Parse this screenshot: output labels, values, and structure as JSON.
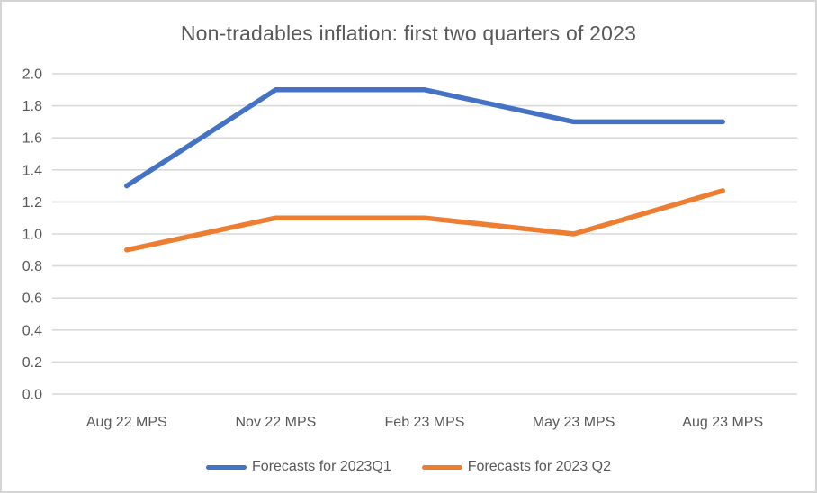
{
  "window": {
    "background": "#ffffff",
    "border_color": "#d5d5d5"
  },
  "colors": {
    "series1": "#4472c4",
    "series2": "#ed7d31",
    "gridline": "#d9d9d9",
    "text": "#595959"
  },
  "legend": {
    "items": [
      {
        "label": "Forecasts for 2023Q1",
        "color": "#4472c4"
      },
      {
        "label": "Forecasts for 2023 Q2",
        "color": "#ed7d31"
      }
    ]
  },
  "chart_data": {
    "type": "line",
    "title": "Non-tradables inflation: first two quarters of 2023",
    "categories": [
      "Aug 22 MPS",
      "Nov 22 MPS",
      "Feb 23 MPS",
      "May 23 MPS",
      "Aug 23 MPS"
    ],
    "series": [
      {
        "name": "Forecasts for 2023Q1",
        "color": "#4472c4",
        "values": [
          1.3,
          1.9,
          1.9,
          1.7,
          1.7
        ]
      },
      {
        "name": "Forecasts for 2023 Q2",
        "color": "#ed7d31",
        "values": [
          0.9,
          1.1,
          1.1,
          1.0,
          1.27
        ]
      }
    ],
    "xlabel": "",
    "ylabel": "",
    "ylim": [
      0.0,
      2.0
    ],
    "ytick_step": 0.2,
    "yticks": [
      "0.0",
      "0.2",
      "0.4",
      "0.6",
      "0.8",
      "1.0",
      "1.2",
      "1.4",
      "1.6",
      "1.8",
      "2.0"
    ],
    "grid": true,
    "legend_position": "bottom"
  }
}
